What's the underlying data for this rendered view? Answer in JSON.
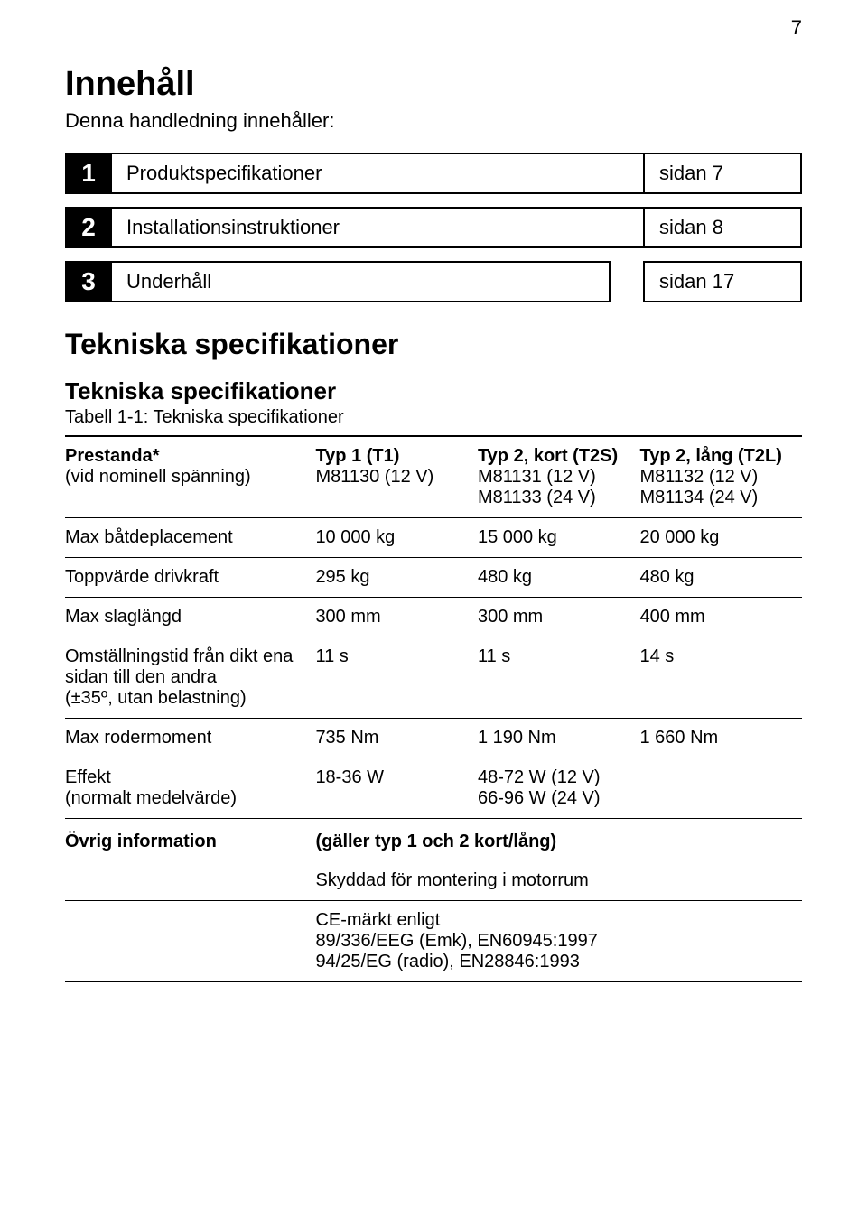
{
  "page_number": "7",
  "heading": "Innehåll",
  "intro": "Denna handledning innehåller:",
  "toc": [
    {
      "num": "1",
      "label": "Produktspecifikationer",
      "page": "sidan 7",
      "detached": false
    },
    {
      "num": "2",
      "label": "Installationsinstruktioner",
      "page": "sidan 8",
      "detached": false
    },
    {
      "num": "3",
      "label": "Underhåll",
      "page": "sidan 17",
      "detached": true
    }
  ],
  "section_title": "Tekniska specifikationer",
  "subsection_title": "Tekniska specifikationer",
  "table_caption": "Tabell 1-1:  Tekniska specifikationer",
  "spec_table": {
    "columns": [
      {
        "title": "Prestanda*",
        "sub": "(vid nominell spänning)"
      },
      {
        "title": "Typ 1 (T1)",
        "sub": "M81130 (12 V)"
      },
      {
        "title": "Typ 2, kort (T2S)",
        "sub": "M81131 (12 V)\nM81133 (24 V)"
      },
      {
        "title": "Typ 2, lång (T2L)",
        "sub": "M81132 (12 V)\nM81134 (24 V)"
      }
    ],
    "rows": [
      {
        "label": "Max båtdeplacement",
        "cells": [
          "10 000 kg",
          "15 000 kg",
          "20 000 kg"
        ]
      },
      {
        "label": "Toppvärde drivkraft",
        "cells": [
          "295 kg",
          "480 kg",
          "480 kg"
        ]
      },
      {
        "label": "Max slaglängd",
        "cells": [
          "300 mm",
          "300 mm",
          "400 mm"
        ]
      },
      {
        "label": "Omställningstid från dikt ena sidan till den andra\n(±35º, utan belastning)",
        "cells": [
          "11 s",
          "11 s",
          "14 s"
        ]
      },
      {
        "label": "Max rodermoment",
        "cells": [
          "735 Nm",
          "1 190 Nm",
          "1 660 Nm"
        ]
      }
    ],
    "effect_row": {
      "label": "Effekt\n(normalt medelvärde)",
      "col1": "18-36 W",
      "col_merged": "48-72 W (12 V)\n66-96 W (24 V)"
    },
    "info_header": {
      "label": "Övrig information",
      "value": "(gäller typ 1 och 2 kort/lång)"
    },
    "info_lines": [
      "Skyddad för montering i motorrum",
      "CE-märkt enligt\n89/336/EEG (Emk), EN60945:1997\n94/25/EG (radio), EN28846:1993"
    ]
  },
  "colors": {
    "text": "#000000",
    "background": "#ffffff",
    "invert_bg": "#000000",
    "invert_fg": "#ffffff"
  }
}
